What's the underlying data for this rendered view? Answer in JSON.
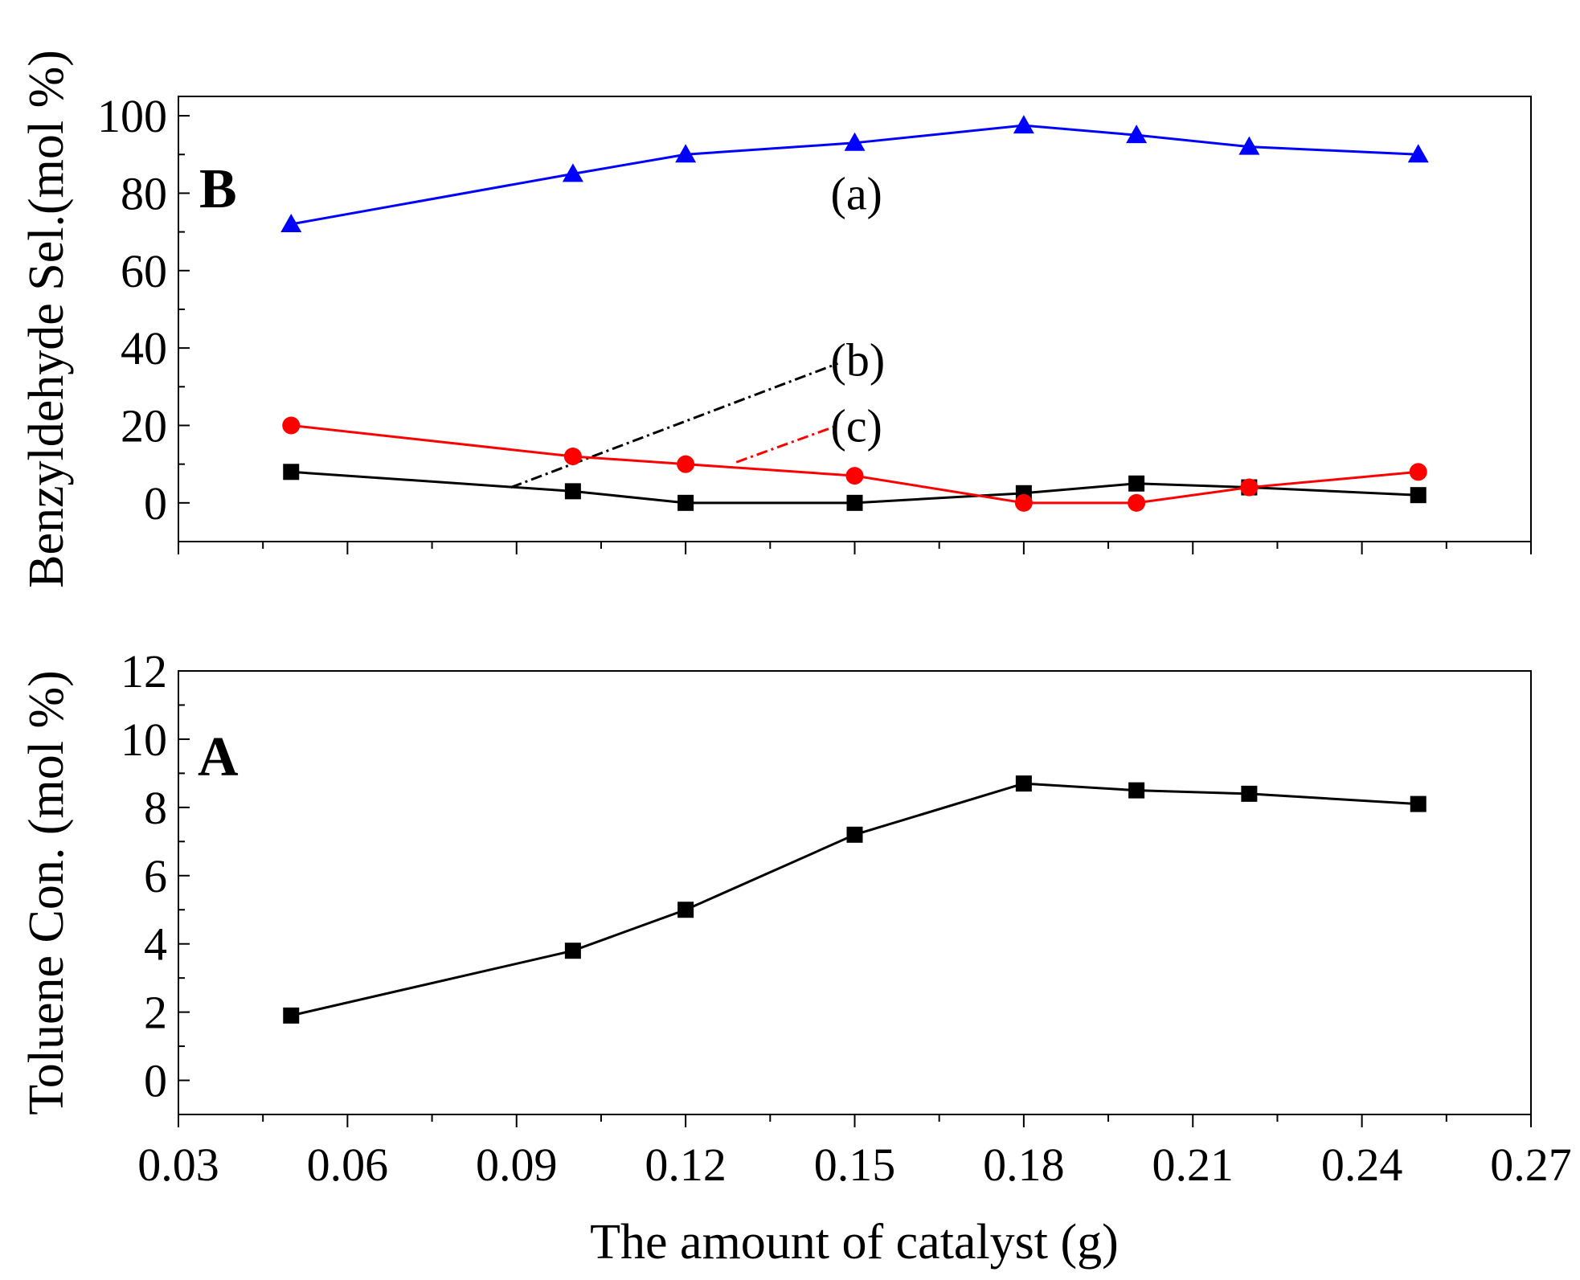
{
  "chart_data": [
    {
      "type": "line",
      "panel": "B",
      "ylabel": "Benzyldehyde Sel.(mol %)",
      "xlim": [
        0.03,
        0.27
      ],
      "ylim": [
        -10,
        105
      ],
      "yticks": [
        0,
        20,
        40,
        60,
        80,
        100
      ],
      "ytick_labels": [
        "0",
        "20",
        "40",
        "60",
        "80",
        "100"
      ],
      "x": [
        0.05,
        0.1,
        0.12,
        0.15,
        0.18,
        0.2,
        0.22,
        0.25
      ],
      "series": [
        {
          "name": "(a)",
          "color": "#0000ff",
          "marker": "triangle",
          "values": [
            72,
            85,
            90,
            93,
            97.5,
            95,
            92,
            90
          ]
        },
        {
          "name": "(b)",
          "color": "#000000",
          "marker": "square",
          "values": [
            8,
            3,
            0,
            0,
            2.5,
            5,
            4,
            2
          ]
        },
        {
          "name": "(c)",
          "color": "#ff0000",
          "marker": "circle",
          "values": [
            20,
            12,
            10,
            7,
            0,
            0,
            4,
            8
          ]
        }
      ],
      "annotations": [
        {
          "text": "(a)",
          "x": 0.15,
          "y": 80
        },
        {
          "text": "(b)",
          "x": 0.15,
          "y": 37,
          "arrow_from": [
            0.089,
            4
          ],
          "arrow_to": [
            0.147,
            36
          ],
          "color": "#000000"
        },
        {
          "text": "(c)",
          "x": 0.15,
          "y": 20,
          "arrow_from": [
            0.129,
            10.5
          ],
          "arrow_to": [
            0.147,
            20
          ],
          "color": "#ff0000"
        }
      ]
    },
    {
      "type": "line",
      "panel": "A",
      "ylabel": "Toluene Con. (mol %)",
      "xlabel": "The amount of catalyst (g)",
      "xlim": [
        0.03,
        0.27
      ],
      "ylim": [
        -1,
        12
      ],
      "yticks": [
        0,
        2,
        4,
        6,
        8,
        10,
        12
      ],
      "ytick_labels": [
        "0",
        "2",
        "4",
        "6",
        "8",
        "10",
        "12"
      ],
      "xticks": [
        0.03,
        0.06,
        0.09,
        0.12,
        0.15,
        0.18,
        0.21,
        0.24,
        0.27
      ],
      "xtick_labels": [
        "0.03",
        "0.06",
        "0.09",
        "0.12",
        "0.15",
        "0.18",
        "0.21",
        "0.24",
        "0.27"
      ],
      "x": [
        0.05,
        0.1,
        0.12,
        0.15,
        0.18,
        0.2,
        0.22,
        0.25
      ],
      "series": [
        {
          "name": "Toluene Con.",
          "color": "#000000",
          "marker": "square",
          "values": [
            1.9,
            3.8,
            5.0,
            7.2,
            8.7,
            8.5,
            8.4,
            8.1
          ]
        }
      ]
    }
  ]
}
